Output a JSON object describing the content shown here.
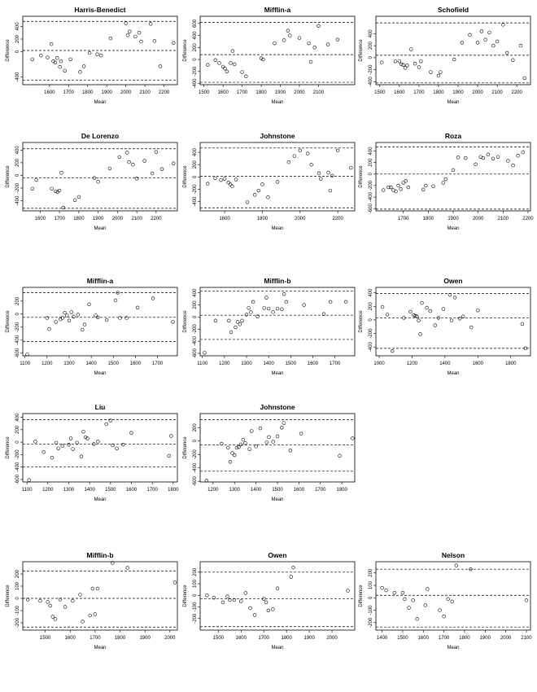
{
  "chart_data": [
    {
      "type": "scatter",
      "title": "Harris-Benedict",
      "xlabel": "Mean",
      "ylabel": "Difference",
      "xlim": [
        1460,
        2270
      ],
      "ylim": [
        -520,
        560
      ],
      "xticks": [
        1600,
        1700,
        1800,
        1900,
        2000,
        2100,
        2200
      ],
      "yticks": [
        -400,
        0,
        200,
        400
      ],
      "hlines": [
        480,
        20,
        -450
      ],
      "x": [
        1510,
        1555,
        1590,
        1610,
        1620,
        1630,
        1640,
        1655,
        1660,
        1680,
        1710,
        1760,
        1780,
        1810,
        1850,
        1870,
        1920,
        2000,
        2010,
        2020,
        2050,
        2070,
        2080,
        2130,
        2150,
        2180,
        2250
      ],
      "y": [
        -120,
        -60,
        -90,
        120,
        -150,
        -170,
        -100,
        -240,
        -150,
        -300,
        -120,
        -320,
        -230,
        -20,
        -40,
        -60,
        210,
        450,
        260,
        320,
        240,
        300,
        160,
        440,
        170,
        -230,
        140
      ]
    },
    {
      "type": "scatter",
      "title": "Mifflin-a",
      "xlabel": "Mean",
      "ylabel": "Difference",
      "xlim": [
        1480,
        2290
      ],
      "ylim": [
        -420,
        720
      ],
      "xticks": [
        1500,
        1600,
        1700,
        1800,
        1900,
        2000,
        2100
      ],
      "yticks": [
        -400,
        -200,
        0,
        200,
        400,
        600
      ],
      "hlines": [
        620,
        80,
        -380
      ],
      "x": [
        1520,
        1560,
        1580,
        1600,
        1610,
        1620,
        1640,
        1650,
        1660,
        1700,
        1720,
        1800,
        1810,
        1870,
        1920,
        1940,
        1950,
        2000,
        2050,
        2060,
        2080,
        2100,
        2150,
        2200
      ],
      "y": [
        -90,
        -10,
        -60,
        -120,
        -150,
        -200,
        -60,
        140,
        -80,
        -210,
        -280,
        20,
        0,
        270,
        320,
        480,
        400,
        360,
        270,
        -40,
        200,
        560,
        250,
        330
      ]
    },
    {
      "type": "scatter",
      "title": "Schofield",
      "xlabel": "Mean",
      "ylabel": "Difference",
      "xlim": [
        1480,
        2270
      ],
      "ylim": [
        -450,
        690
      ],
      "xticks": [
        1500,
        1600,
        1700,
        1800,
        1900,
        2000,
        2100,
        2200
      ],
      "yticks": [
        -400,
        -200,
        0,
        200,
        400
      ],
      "hlines": [
        580,
        40,
        -420
      ],
      "x": [
        1510,
        1580,
        1600,
        1610,
        1620,
        1630,
        1640,
        1660,
        1680,
        1700,
        1710,
        1760,
        1800,
        1810,
        1880,
        1920,
        1960,
        2000,
        2020,
        2040,
        2060,
        2080,
        2100,
        2130,
        2150,
        2180,
        2220,
        2240
      ],
      "y": [
        -80,
        -60,
        -60,
        -110,
        -120,
        -170,
        -130,
        140,
        -100,
        -160,
        -60,
        -240,
        -300,
        -240,
        -30,
        250,
        380,
        250,
        440,
        300,
        420,
        200,
        270,
        550,
        80,
        -40,
        200,
        -340
      ]
    },
    {
      "type": "scatter",
      "title": "De Lorenzo",
      "xlabel": "Mean",
      "ylabel": "Difference",
      "xlim": [
        1510,
        2310
      ],
      "ylim": [
        -560,
        520
      ],
      "xticks": [
        1600,
        1700,
        1800,
        1900,
        2000,
        2100,
        2200
      ],
      "yticks": [
        -400,
        -200,
        0,
        200,
        400
      ],
      "hlines": [
        420,
        -40,
        -520
      ],
      "x": [
        1560,
        1580,
        1660,
        1680,
        1690,
        1700,
        1710,
        1720,
        1780,
        1800,
        1880,
        1900,
        1960,
        2010,
        2050,
        2060,
        2080,
        2100,
        2140,
        2180,
        2200,
        2230,
        2290
      ],
      "y": [
        -210,
        -70,
        -210,
        -250,
        -260,
        -240,
        40,
        -510,
        -390,
        -340,
        -40,
        -100,
        110,
        290,
        360,
        210,
        170,
        -50,
        230,
        30,
        370,
        100,
        190
      ]
    },
    {
      "type": "scatter",
      "title": "Johnstone",
      "xlabel": "Mean",
      "ylabel": "Difference",
      "xlim": [
        1470,
        2290
      ],
      "ylim": [
        -550,
        560
      ],
      "xticks": [
        1600,
        1800,
        2000,
        2200
      ],
      "yticks": [
        -400,
        -200,
        0,
        200,
        400
      ],
      "hlines": [
        470,
        10,
        -500
      ],
      "x": [
        1510,
        1550,
        1580,
        1600,
        1620,
        1630,
        1640,
        1660,
        1720,
        1760,
        1780,
        1800,
        1830,
        1880,
        1940,
        1970,
        2000,
        2040,
        2060,
        2100,
        2110,
        2150,
        2160,
        2170,
        2200,
        2270
      ],
      "y": [
        -110,
        -20,
        -50,
        -30,
        -90,
        -120,
        -150,
        -40,
        -410,
        -290,
        -220,
        -120,
        -330,
        -80,
        240,
        340,
        430,
        380,
        200,
        60,
        -30,
        70,
        -220,
        20,
        430,
        150
      ]
    },
    {
      "type": "scatter",
      "title": "Roza",
      "xlabel": "Mean",
      "ylabel": "Difference",
      "xlim": [
        1590,
        2210
      ],
      "ylim": [
        -640,
        550
      ],
      "xticks": [
        1700,
        1800,
        1900,
        2000,
        2100,
        2200
      ],
      "yticks": [
        -600,
        -400,
        -200,
        0,
        200,
        400
      ],
      "hlines": [
        470,
        0,
        -610
      ],
      "x": [
        1620,
        1640,
        1650,
        1660,
        1670,
        1680,
        1690,
        1700,
        1710,
        1720,
        1780,
        1790,
        1820,
        1860,
        1870,
        1900,
        1920,
        1950,
        1990,
        2010,
        2020,
        2040,
        2060,
        2080,
        2120,
        2140,
        2160,
        2180
      ],
      "y": [
        -280,
        -230,
        -230,
        -280,
        -300,
        -200,
        -260,
        -150,
        -120,
        -230,
        -270,
        -200,
        -210,
        -150,
        -90,
        70,
        290,
        280,
        170,
        300,
        280,
        340,
        270,
        300,
        230,
        150,
        320,
        380
      ]
    },
    {
      "type": "scatter",
      "title": "Mifflin-a",
      "xlabel": "Mean",
      "ylabel": "Difference",
      "xlim": [
        1090,
        1790
      ],
      "ylim": [
        -640,
        410
      ],
      "xticks": [
        1100,
        1200,
        1300,
        1400,
        1500,
        1600,
        1700
      ],
      "yticks": [
        -600,
        -400,
        -200,
        0,
        200
      ],
      "hlines": [
        330,
        -50,
        -420
      ],
      "x": [
        1110,
        1200,
        1210,
        1240,
        1260,
        1270,
        1280,
        1290,
        1300,
        1310,
        1320,
        1340,
        1360,
        1370,
        1390,
        1420,
        1430,
        1470,
        1510,
        1520,
        1530,
        1560,
        1610,
        1680,
        1770
      ],
      "y": [
        -620,
        -60,
        -230,
        -120,
        -80,
        -60,
        20,
        -20,
        -100,
        30,
        -40,
        -10,
        -240,
        -160,
        150,
        -20,
        -50,
        -90,
        210,
        330,
        -60,
        -60,
        100,
        240,
        -120
      ]
    },
    {
      "type": "scatter",
      "title": "Mifflin-b",
      "xlabel": "Mean",
      "ylabel": "Difference",
      "xlim": [
        1090,
        1790
      ],
      "ylim": [
        -640,
        490
      ],
      "xticks": [
        1100,
        1200,
        1300,
        1400,
        1500,
        1600,
        1700
      ],
      "yticks": [
        -600,
        -400,
        -200,
        0,
        200,
        400
      ],
      "hlines": [
        430,
        30,
        -370
      ],
      "x": [
        1110,
        1160,
        1220,
        1230,
        1250,
        1260,
        1270,
        1280,
        1300,
        1310,
        1320,
        1330,
        1350,
        1380,
        1390,
        1400,
        1420,
        1440,
        1460,
        1470,
        1480,
        1560,
        1650,
        1680,
        1750
      ],
      "y": [
        -590,
        -60,
        -60,
        -250,
        -170,
        -80,
        -120,
        -60,
        40,
        150,
        80,
        250,
        10,
        150,
        320,
        140,
        80,
        140,
        130,
        380,
        250,
        200,
        50,
        250,
        250
      ]
    },
    {
      "type": "scatter",
      "title": "Owen",
      "xlabel": "Mean",
      "ylabel": "Difference",
      "xlim": [
        980,
        1920
      ],
      "ylim": [
        -530,
        480
      ],
      "xticks": [
        1000,
        1200,
        1400,
        1600,
        1800
      ],
      "yticks": [
        -400,
        -200,
        0,
        200,
        400
      ],
      "hlines": [
        390,
        30,
        -420
      ],
      "x": [
        1020,
        1050,
        1080,
        1150,
        1190,
        1210,
        1220,
        1230,
        1240,
        1250,
        1260,
        1290,
        1310,
        1340,
        1360,
        1390,
        1430,
        1440,
        1460,
        1490,
        1510,
        1560,
        1600,
        1870,
        1890
      ],
      "y": [
        190,
        80,
        -460,
        30,
        120,
        70,
        60,
        50,
        -10,
        -210,
        250,
        180,
        130,
        -80,
        30,
        160,
        370,
        -10,
        330,
        20,
        50,
        -110,
        140,
        -60,
        -420
      ]
    },
    {
      "type": "scatter",
      "title": "Liu",
      "xlabel": "Mean",
      "ylabel": "Difference",
      "xlim": [
        1080,
        1820
      ],
      "ylim": [
        -640,
        460
      ],
      "xticks": [
        1100,
        1200,
        1300,
        1400,
        1500,
        1600,
        1700,
        1800
      ],
      "yticks": [
        -600,
        -400,
        -200,
        0,
        200,
        400
      ],
      "hlines": [
        360,
        -30,
        -400
      ],
      "x": [
        1110,
        1140,
        1180,
        1220,
        1240,
        1250,
        1270,
        1300,
        1310,
        1320,
        1340,
        1360,
        1370,
        1380,
        1390,
        1420,
        1440,
        1480,
        1500,
        1510,
        1530,
        1560,
        1600,
        1780,
        1790
      ],
      "y": [
        -610,
        10,
        -160,
        -250,
        -10,
        -100,
        -60,
        -40,
        60,
        -110,
        -10,
        -230,
        170,
        80,
        60,
        -30,
        10,
        290,
        350,
        -50,
        -100,
        -40,
        150,
        -220,
        100
      ]
    },
    {
      "type": "scatter",
      "title": "Johnstone",
      "xlabel": "Mean",
      "ylabel": "Difference",
      "xlim": [
        1140,
        1860
      ],
      "ylim": [
        -610,
        410
      ],
      "xticks": [
        1200,
        1300,
        1400,
        1500,
        1600,
        1700,
        1800
      ],
      "yticks": [
        -600,
        -400,
        -200,
        0,
        200
      ],
      "hlines": [
        320,
        -60,
        -450
      ],
      "x": [
        1170,
        1240,
        1270,
        1280,
        1290,
        1300,
        1310,
        1320,
        1330,
        1340,
        1350,
        1370,
        1380,
        1400,
        1420,
        1450,
        1460,
        1480,
        1500,
        1520,
        1530,
        1560,
        1610,
        1790,
        1850
      ],
      "y": [
        -590,
        -40,
        -100,
        -310,
        -180,
        -210,
        -100,
        -90,
        -50,
        20,
        -30,
        -120,
        150,
        -80,
        190,
        -20,
        60,
        -10,
        70,
        200,
        270,
        -140,
        110,
        -220,
        40
      ]
    },
    {
      "type": "scatter",
      "title": "Mifflin-b",
      "xlabel": "Mean",
      "ylabel": "Difference",
      "xlim": [
        1410,
        2030
      ],
      "ylim": [
        -260,
        300
      ],
      "xticks": [
        1500,
        1600,
        1700,
        1800,
        1900,
        2000
      ],
      "yticks": [
        -200,
        -100,
        0,
        100,
        200
      ],
      "hlines": [
        225,
        0,
        -235
      ],
      "x": [
        1430,
        1480,
        1510,
        1520,
        1530,
        1540,
        1560,
        1580,
        1610,
        1640,
        1650,
        1680,
        1690,
        1700,
        1710,
        1770,
        1830,
        2020
      ],
      "y": [
        -10,
        -20,
        -30,
        -60,
        -150,
        -170,
        -10,
        -70,
        -20,
        30,
        -190,
        -140,
        80,
        -130,
        80,
        290,
        250,
        130
      ]
    },
    {
      "type": "scatter",
      "title": "Owen",
      "xlabel": "Mean",
      "ylabel": "Difference",
      "xlim": [
        1420,
        2100
      ],
      "ylim": [
        -300,
        290
      ],
      "xticks": [
        1500,
        1600,
        1700,
        1800,
        1900,
        2000
      ],
      "yticks": [
        -200,
        -100,
        0,
        100,
        200
      ],
      "hlines": [
        200,
        -30,
        -270
      ],
      "x": [
        1450,
        1480,
        1520,
        1540,
        1550,
        1570,
        1600,
        1620,
        1640,
        1660,
        1700,
        1710,
        1720,
        1740,
        1760,
        1820,
        1830,
        2070
      ],
      "y": [
        0,
        -20,
        -60,
        -10,
        -40,
        -40,
        -50,
        20,
        -110,
        -170,
        -30,
        -60,
        -130,
        -120,
        60,
        160,
        240,
        40
      ]
    },
    {
      "type": "scatter",
      "title": "Nelson",
      "xlabel": "Mean",
      "ylabel": "Difference",
      "xlim": [
        1370,
        2120
      ],
      "ylim": [
        -260,
        290
      ],
      "xticks": [
        1400,
        1500,
        1600,
        1700,
        1800,
        1900,
        2000,
        2100
      ],
      "yticks": [
        -200,
        -100,
        0,
        100,
        200
      ],
      "hlines": [
        230,
        20,
        -235
      ],
      "x": [
        1400,
        1420,
        1460,
        1500,
        1510,
        1530,
        1550,
        1570,
        1610,
        1620,
        1680,
        1700,
        1720,
        1740,
        1760,
        1830,
        2100
      ],
      "y": [
        80,
        60,
        40,
        40,
        -10,
        -80,
        -20,
        -170,
        -60,
        70,
        -100,
        -150,
        -10,
        -30,
        260,
        230,
        -20
      ]
    }
  ]
}
